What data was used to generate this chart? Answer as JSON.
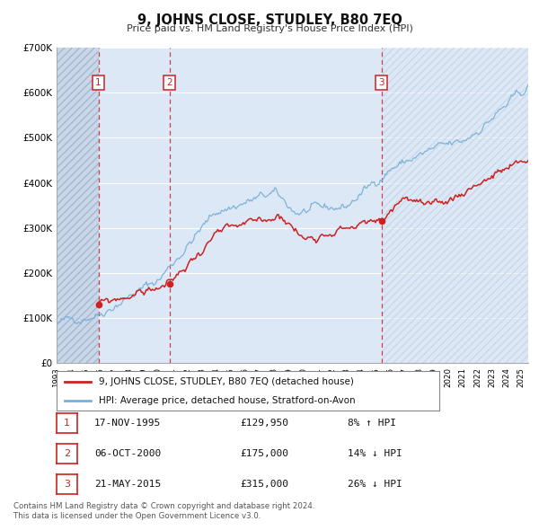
{
  "title": "9, JOHNS CLOSE, STUDLEY, B80 7EQ",
  "subtitle": "Price paid vs. HM Land Registry's House Price Index (HPI)",
  "ylim": [
    0,
    700000
  ],
  "yticks": [
    0,
    100000,
    200000,
    300000,
    400000,
    500000,
    600000,
    700000
  ],
  "ytick_labels": [
    "£0",
    "£100K",
    "£200K",
    "£300K",
    "£400K",
    "£500K",
    "£600K",
    "£700K"
  ],
  "plot_background": "#dce8f5",
  "grid_color": "#c8d8ea",
  "hatch_color": "#b8cce0",
  "hpi_color": "#7ab0d8",
  "price_color": "#cc2222",
  "legend_label_price": "9, JOHNS CLOSE, STUDLEY, B80 7EQ (detached house)",
  "legend_label_hpi": "HPI: Average price, detached house, Stratford-on-Avon",
  "sale_years": [
    1995.88,
    2000.77,
    2015.38
  ],
  "sale_prices": [
    129950,
    175000,
    315000
  ],
  "sale_labels": [
    "1",
    "2",
    "3"
  ],
  "sales": [
    {
      "num": "1",
      "date": "17-NOV-1995",
      "price": "£129,950",
      "pct": "8%",
      "dir": "↑"
    },
    {
      "num": "2",
      "date": "06-OCT-2000",
      "price": "£175,000",
      "pct": "14%",
      "dir": "↓"
    },
    {
      "num": "3",
      "date": "21-MAY-2015",
      "price": "£315,000",
      "pct": "26%",
      "dir": "↓"
    }
  ],
  "footnote1": "Contains HM Land Registry data © Crown copyright and database right 2024.",
  "footnote2": "This data is licensed under the Open Government Licence v3.0.",
  "hpi_seed": 42,
  "price_seed": 99,
  "xmin": 1993.0,
  "xmax": 2025.5
}
